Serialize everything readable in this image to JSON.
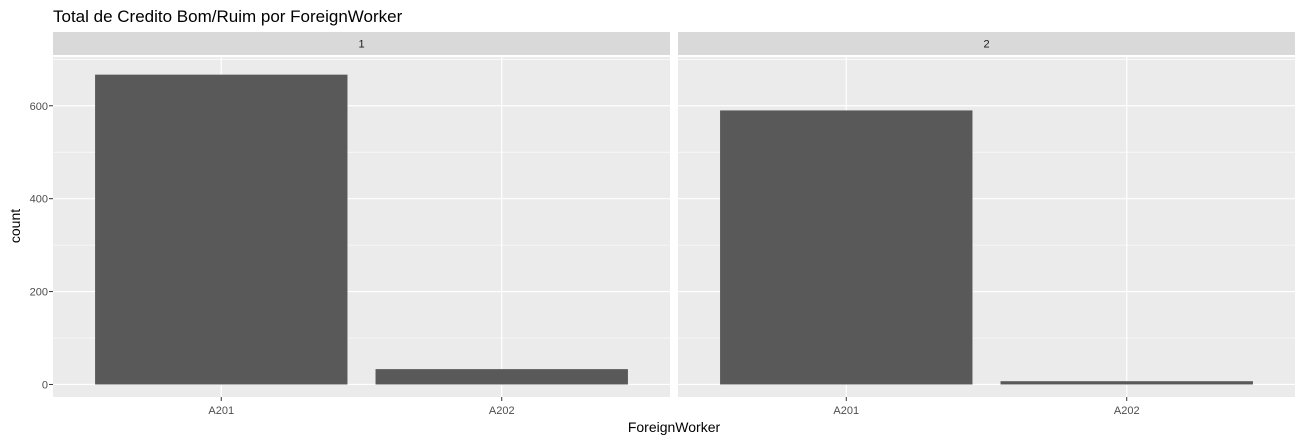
{
  "chart_data": {
    "type": "bar",
    "title": "Total de Credito Bom/Ruim por ForeignWorker",
    "xlabel": "ForeignWorker",
    "ylabel": "count",
    "ylim": [
      -27,
      705
    ],
    "yticks": [
      0,
      200,
      400,
      600
    ],
    "grid": true,
    "legend": "none",
    "categories": [
      "A201",
      "A202"
    ],
    "panels": [
      {
        "strip_label": "1",
        "values": [
          667,
          33
        ]
      },
      {
        "strip_label": "2",
        "values": [
          590,
          7
        ]
      }
    ],
    "colors": {
      "bar": "#595959",
      "panel_bg": "#EBEBEB",
      "strip_bg": "#D9D9D9",
      "grid": "#FFFFFF",
      "text": "#1A1A1A",
      "tick_text": "#4D4D4D"
    }
  }
}
